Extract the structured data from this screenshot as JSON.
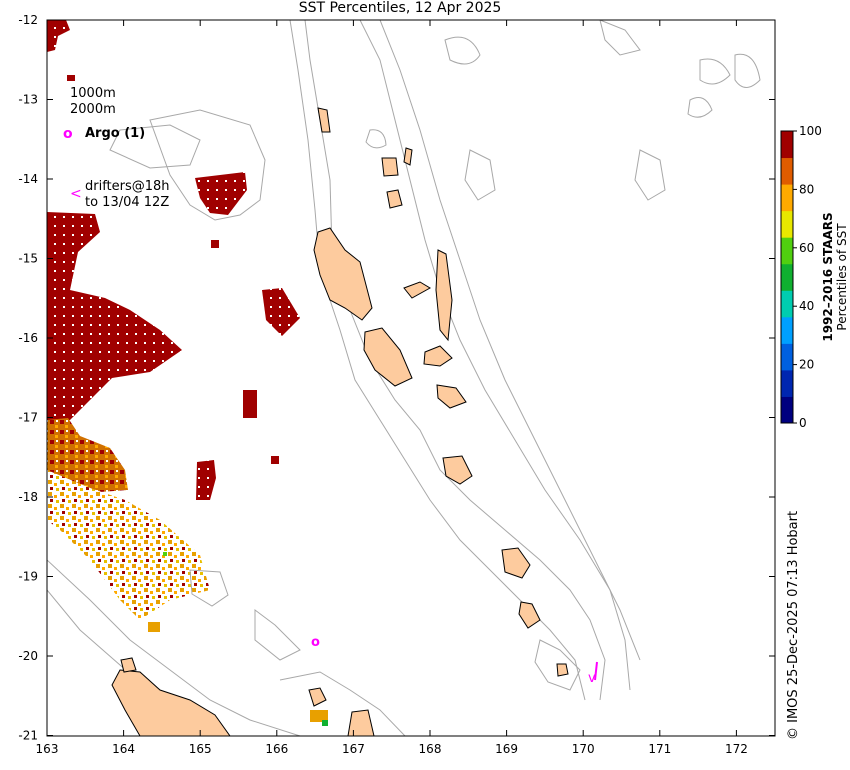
{
  "title": "SST Percentiles, 12 Apr 2025",
  "map": {
    "lon_range": [
      163,
      172.5
    ],
    "lat_range": [
      -21,
      -12
    ],
    "x_ticks": [
      "163",
      "164",
      "165",
      "166",
      "167",
      "168",
      "169",
      "170",
      "171",
      "172"
    ],
    "y_ticks": [
      "-12",
      "-13",
      "-14",
      "-15",
      "-16",
      "-17",
      "-18",
      "-19",
      "-20",
      "-21"
    ],
    "land_color": "#fdcb9e",
    "contour_color": "#a8a8a8"
  },
  "legend": {
    "contour_1": "1000m",
    "contour_2": "2000m",
    "argo_symbol": "o",
    "argo_label": "Argo (1)",
    "drifter_symbol": "<",
    "drifter_label_1": "drifters@18h",
    "drifter_label_2": "to 13/04 12Z",
    "marker_color": "#ff00ff"
  },
  "colorbar": {
    "ticks": [
      "0",
      "20",
      "40",
      "60",
      "80",
      "100"
    ],
    "label_1": "1992–2016 STAARS",
    "label_2": "Percentiles of SST",
    "colors": [
      "#00007f",
      "#0026b0",
      "#0060e0",
      "#00a0ff",
      "#00cdb0",
      "#10b030",
      "#50d010",
      "#e8e800",
      "#ffaa00",
      "#e05c00",
      "#a00000"
    ]
  },
  "credit": "© IMOS 25-Dec-2025 07:13 Hobart"
}
